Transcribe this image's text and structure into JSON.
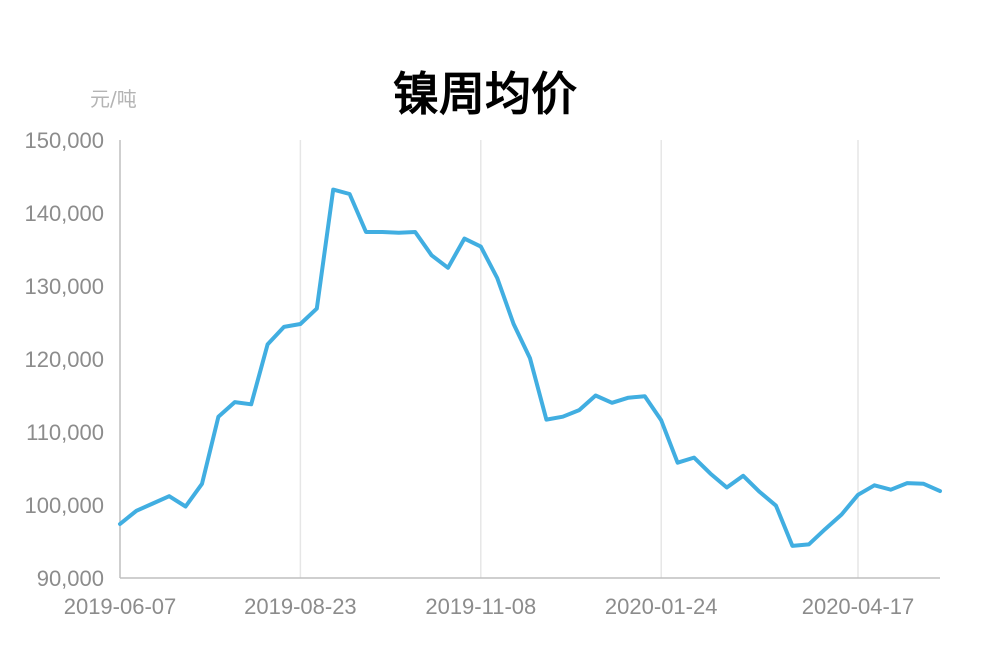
{
  "chart_data": {
    "type": "line",
    "title": "镍周均价",
    "unit_label": "元/吨",
    "xlabel": "",
    "ylabel": "",
    "ylim": [
      90000,
      150000
    ],
    "y_ticks": [
      "90,000",
      "100,000",
      "110,000",
      "120,000",
      "130,000",
      "140,000",
      "150,000"
    ],
    "x_tick_labels": [
      "2019-06-07",
      "2019-08-23",
      "2019-11-08",
      "2020-01-24",
      "2020-04-17"
    ],
    "grid": "vertical",
    "line_color": "#41aee1",
    "x": [
      "2019-06-07",
      "2019-06-14",
      "2019-06-21",
      "2019-06-28",
      "2019-07-05",
      "2019-07-12",
      "2019-07-19",
      "2019-07-26",
      "2019-08-02",
      "2019-08-09",
      "2019-08-16",
      "2019-08-23",
      "2019-08-30",
      "2019-09-06",
      "2019-09-13",
      "2019-09-20",
      "2019-09-27",
      "2019-10-04",
      "2019-10-11",
      "2019-10-18",
      "2019-10-25",
      "2019-11-01",
      "2019-11-08",
      "2019-11-15",
      "2019-11-22",
      "2019-11-29",
      "2019-12-06",
      "2019-12-13",
      "2019-12-20",
      "2019-12-27",
      "2020-01-03",
      "2020-01-10",
      "2020-01-17",
      "2020-01-24",
      "2020-01-31",
      "2020-02-07",
      "2020-02-14",
      "2020-02-21",
      "2020-02-28",
      "2020-03-06",
      "2020-03-13",
      "2020-03-20",
      "2020-03-27",
      "2020-04-03",
      "2020-04-10",
      "2020-04-17",
      "2020-04-24",
      "2020-05-01",
      "2020-05-08",
      "2020-05-15",
      "2020-05-22"
    ],
    "values": [
      97400,
      99200,
      100200,
      101200,
      99800,
      102900,
      112100,
      114100,
      113800,
      122000,
      124400,
      124800,
      126900,
      143200,
      142600,
      137400,
      137400,
      137300,
      137400,
      134200,
      132500,
      136500,
      135400,
      131100,
      124800,
      120100,
      111700,
      112100,
      113000,
      115000,
      114000,
      114700,
      114900,
      111600,
      105800,
      106500,
      104300,
      102400,
      104000,
      101800,
      99900,
      94400,
      94600,
      96700,
      98700,
      101400,
      102700,
      102100,
      103000,
      102900,
      101900
    ]
  }
}
